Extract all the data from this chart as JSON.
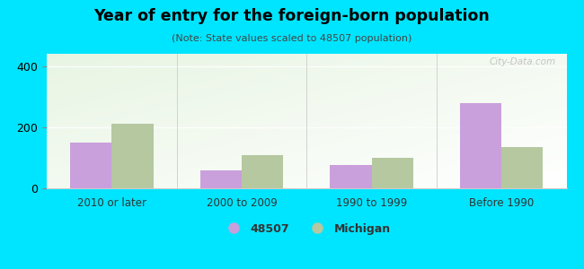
{
  "title": "Year of entry for the foreign-born population",
  "subtitle": "(Note: State values scaled to 48507 population)",
  "categories": [
    "2010 or later",
    "2000 to 2009",
    "1990 to 1999",
    "Before 1990"
  ],
  "values_48507": [
    150,
    60,
    75,
    280
  ],
  "values_michigan": [
    210,
    110,
    100,
    135
  ],
  "color_48507": "#c9a0dc",
  "color_michigan": "#b5c8a0",
  "ylim": [
    0,
    440
  ],
  "yticks": [
    0,
    200,
    400
  ],
  "background_outer": "#00e5ff",
  "legend_label_48507": "48507",
  "legend_label_michigan": "Michigan",
  "bar_width": 0.32,
  "watermark": "City-Data.com"
}
